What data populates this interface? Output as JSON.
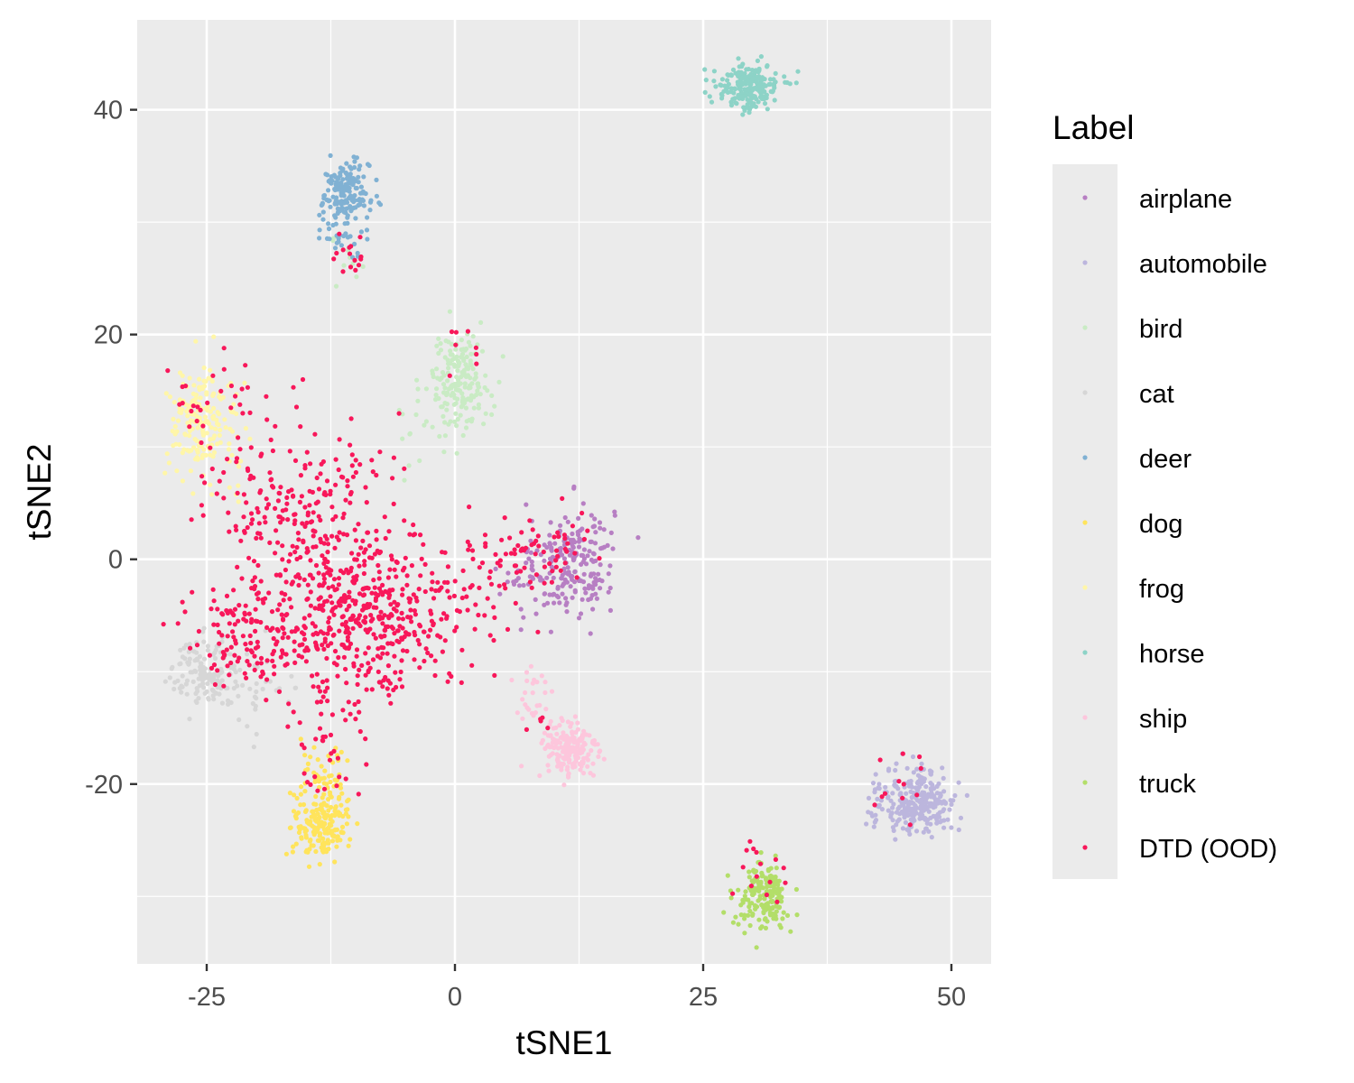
{
  "chart_data": {
    "type": "scatter",
    "xlabel": "tSNE1",
    "ylabel": "tSNE2",
    "xlim": [
      -32,
      54
    ],
    "ylim": [
      -36,
      48
    ],
    "x_ticks": [
      -25,
      0,
      25,
      50
    ],
    "y_ticks": [
      -20,
      0,
      20,
      40
    ],
    "x_tick_labels": [
      "-25",
      "0",
      "25",
      "50"
    ],
    "y_tick_labels": [
      "-20",
      "0",
      "20",
      "40"
    ],
    "grid": true,
    "legend": {
      "title": "Label",
      "position": "right"
    },
    "colors": {
      "airplane": "#b77fc3",
      "automobile": "#bcb6dd",
      "bird": "#c9ebc4",
      "cat": "#d6d6d6",
      "deer": "#80b1d3",
      "dog": "#ffe45c",
      "frog": "#fff6a8",
      "horse": "#8dd3c7",
      "ship": "#fdc6dc",
      "truck": "#b3de69",
      "DTD (OOD)": "#f8175a"
    },
    "series": [
      {
        "name": "airplane",
        "clusters": [
          {
            "cx": 12,
            "cy": 0,
            "sx": 2.0,
            "sy": 2.5,
            "n": 190
          },
          {
            "cx": 8,
            "cy": -2,
            "sx": 1.8,
            "sy": 2.0,
            "n": 40
          }
        ]
      },
      {
        "name": "automobile",
        "clusters": [
          {
            "cx": 47,
            "cy": -21.5,
            "sx": 1.8,
            "sy": 1.5,
            "n": 260
          },
          {
            "cx": 43,
            "cy": -22,
            "sx": 1.0,
            "sy": 1.3,
            "n": 25
          }
        ]
      },
      {
        "name": "bird",
        "clusters": [
          {
            "cx": 0.5,
            "cy": 16,
            "sx": 1.5,
            "sy": 2.0,
            "n": 170
          },
          {
            "cx": -2,
            "cy": 12,
            "sx": 2.0,
            "sy": 2.0,
            "n": 25
          },
          {
            "cx": -11,
            "cy": 27,
            "sx": 1.0,
            "sy": 1.5,
            "n": 10
          }
        ]
      },
      {
        "name": "cat",
        "clusters": [
          {
            "cx": -25,
            "cy": -10,
            "sx": 1.8,
            "sy": 1.5,
            "n": 140
          },
          {
            "cx": -20,
            "cy": -12,
            "sx": 2.5,
            "sy": 2.0,
            "n": 30
          }
        ]
      },
      {
        "name": "deer",
        "clusters": [
          {
            "cx": -11,
            "cy": 32.5,
            "sx": 1.2,
            "sy": 1.4,
            "n": 180
          },
          {
            "cx": -11,
            "cy": 28.5,
            "sx": 1.2,
            "sy": 0.6,
            "n": 20
          }
        ]
      },
      {
        "name": "dog",
        "clusters": [
          {
            "cx": -13.5,
            "cy": -23.5,
            "sx": 1.4,
            "sy": 1.6,
            "n": 190
          },
          {
            "cx": -13,
            "cy": -19,
            "sx": 1.5,
            "sy": 1.4,
            "n": 40
          }
        ]
      },
      {
        "name": "frog",
        "clusters": [
          {
            "cx": -25.5,
            "cy": 12.5,
            "sx": 1.8,
            "sy": 2.2,
            "n": 170
          },
          {
            "cx": -23,
            "cy": 9,
            "sx": 1.5,
            "sy": 1.5,
            "n": 20
          }
        ]
      },
      {
        "name": "horse",
        "clusters": [
          {
            "cx": 29.5,
            "cy": 42,
            "sx": 1.6,
            "sy": 1.0,
            "n": 210
          }
        ]
      },
      {
        "name": "ship",
        "clusters": [
          {
            "cx": 11.5,
            "cy": -17,
            "sx": 1.5,
            "sy": 1.4,
            "n": 180
          },
          {
            "cx": 8,
            "cy": -12,
            "sx": 1.0,
            "sy": 1.8,
            "n": 25
          }
        ]
      },
      {
        "name": "truck",
        "clusters": [
          {
            "cx": 31,
            "cy": -30,
            "sx": 1.3,
            "sy": 1.4,
            "n": 180
          }
        ]
      },
      {
        "name": "DTD (OOD)",
        "clusters": [
          {
            "cx": -9,
            "cy": -5,
            "sx": 5.5,
            "sy": 3.5,
            "n": 520
          },
          {
            "cx": -16,
            "cy": 5,
            "sx": 4.5,
            "sy": 4.0,
            "n": 220
          },
          {
            "cx": -21,
            "cy": -7,
            "sx": 3.0,
            "sy": 2.5,
            "n": 100
          },
          {
            "cx": 7,
            "cy": 0,
            "sx": 3.0,
            "sy": 1.8,
            "n": 80
          },
          {
            "cx": -13,
            "cy": -16,
            "sx": 1.8,
            "sy": 3.0,
            "n": 40
          },
          {
            "cx": -11,
            "cy": 27,
            "sx": 1.0,
            "sy": 1.2,
            "n": 15
          },
          {
            "cx": -24,
            "cy": 14,
            "sx": 2.5,
            "sy": 2.0,
            "n": 30
          },
          {
            "cx": 0.5,
            "cy": 19,
            "sx": 1.2,
            "sy": 1.5,
            "n": 8
          },
          {
            "cx": 31,
            "cy": -28,
            "sx": 1.8,
            "sy": 1.5,
            "n": 15
          },
          {
            "cx": 45,
            "cy": -20,
            "sx": 2.5,
            "sy": 1.5,
            "n": 12
          },
          {
            "cx": 8,
            "cy": -14,
            "sx": 0.8,
            "sy": 0.8,
            "n": 5
          }
        ]
      }
    ]
  }
}
